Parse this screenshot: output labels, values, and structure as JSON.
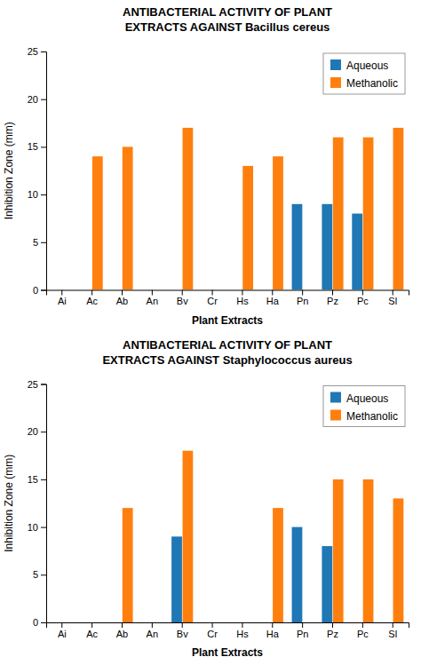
{
  "chart_data": [
    {
      "type": "bar",
      "title": [
        "ANTIBACTERIAL ACTIVITY OF PLANT",
        "EXTRACTS AGAINST Bacillus cereus"
      ],
      "categories": [
        "Ai",
        "Ac",
        "Ab",
        "An",
        "Bv",
        "Cr",
        "Hs",
        "Ha",
        "Pn",
        "Pz",
        "Pc",
        "Sl"
      ],
      "series": [
        {
          "name": "Aqueous",
          "values": [
            0,
            0,
            0,
            0,
            0,
            0,
            0,
            0,
            9,
            9,
            8,
            0
          ]
        },
        {
          "name": "Methanolic",
          "values": [
            0,
            14,
            15,
            0,
            17,
            0,
            13,
            14,
            0,
            16,
            16,
            17
          ]
        }
      ],
      "x_label": "Plant Extracts",
      "y_label": "Inhibition Zone (mm)",
      "ylim": [
        0,
        25
      ],
      "yticks": [
        0,
        5,
        10,
        15,
        20,
        25
      ],
      "legend": "upper right",
      "grid": false
    },
    {
      "type": "bar",
      "title": [
        "ANTIBACTERIAL ACTIVITY OF PLANT",
        "EXTRACTS AGAINST Staphylococcus aureus"
      ],
      "categories": [
        "Ai",
        "Ac",
        "Ab",
        "An",
        "Bv",
        "Cr",
        "Hs",
        "Ha",
        "Pn",
        "Pz",
        "Pc",
        "Sl"
      ],
      "series": [
        {
          "name": "Aqueous",
          "values": [
            0,
            0,
            0,
            0,
            9,
            0,
            0,
            0,
            10,
            8,
            0,
            0
          ]
        },
        {
          "name": "Methanolic",
          "values": [
            0,
            0,
            12,
            0,
            18,
            0,
            0,
            12,
            0,
            15,
            15,
            13
          ]
        }
      ],
      "x_label": "Plant Extracts",
      "y_label": "Inhibition Zone (mm)",
      "ylim": [
        0,
        25
      ],
      "yticks": [
        0,
        5,
        10,
        15,
        20,
        25
      ],
      "legend": "upper right",
      "grid": false
    }
  ]
}
